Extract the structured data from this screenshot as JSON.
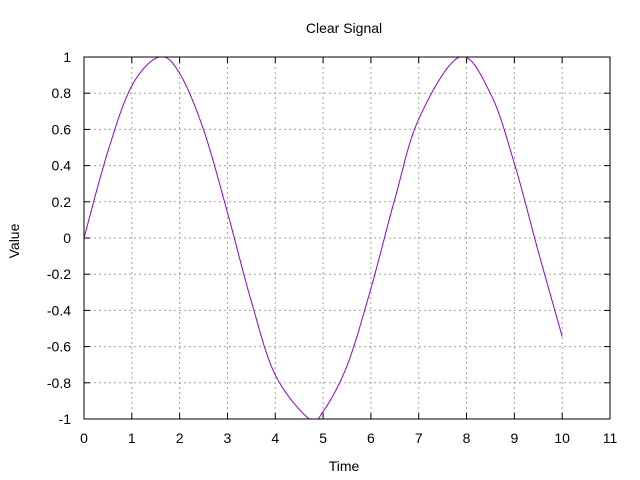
{
  "chart_data": {
    "type": "line",
    "title": "Clear Signal",
    "xlabel": "Time",
    "ylabel": "Value",
    "xlim": [
      0,
      11
    ],
    "ylim": [
      -1,
      1
    ],
    "xticks": [
      0,
      1,
      2,
      3,
      4,
      5,
      6,
      7,
      8,
      9,
      10,
      11
    ],
    "yticks": [
      -1,
      -0.8,
      -0.6,
      -0.4,
      -0.2,
      0,
      0.2,
      0.4,
      0.6,
      0.8,
      1
    ],
    "xtick_labels": [
      "0",
      "1",
      "2",
      "3",
      "4",
      "5",
      "6",
      "7",
      "8",
      "9",
      "10",
      "11"
    ],
    "ytick_labels": [
      "-1",
      "-0.8",
      "-0.6",
      "-0.4",
      "-0.2",
      "0",
      "0.2",
      "0.4",
      "0.6",
      "0.8",
      "1"
    ],
    "grid": true,
    "legend": "none",
    "series": [
      {
        "color": "#9400d3",
        "x": [
          0,
          0.5,
          1,
          1.5708,
          2,
          2.5,
          3,
          3.5,
          4,
          4.7124,
          5,
          5.5,
          6,
          6.5,
          7,
          7.854,
          8.5,
          9,
          9.5,
          10
        ],
        "y": [
          0,
          0.479,
          0.841,
          1,
          0.909,
          0.598,
          0.141,
          -0.351,
          -0.757,
          -1,
          -0.959,
          -0.706,
          -0.279,
          0.215,
          0.657,
          1,
          0.798,
          0.412,
          -0.075,
          -0.544
        ]
      }
    ]
  }
}
